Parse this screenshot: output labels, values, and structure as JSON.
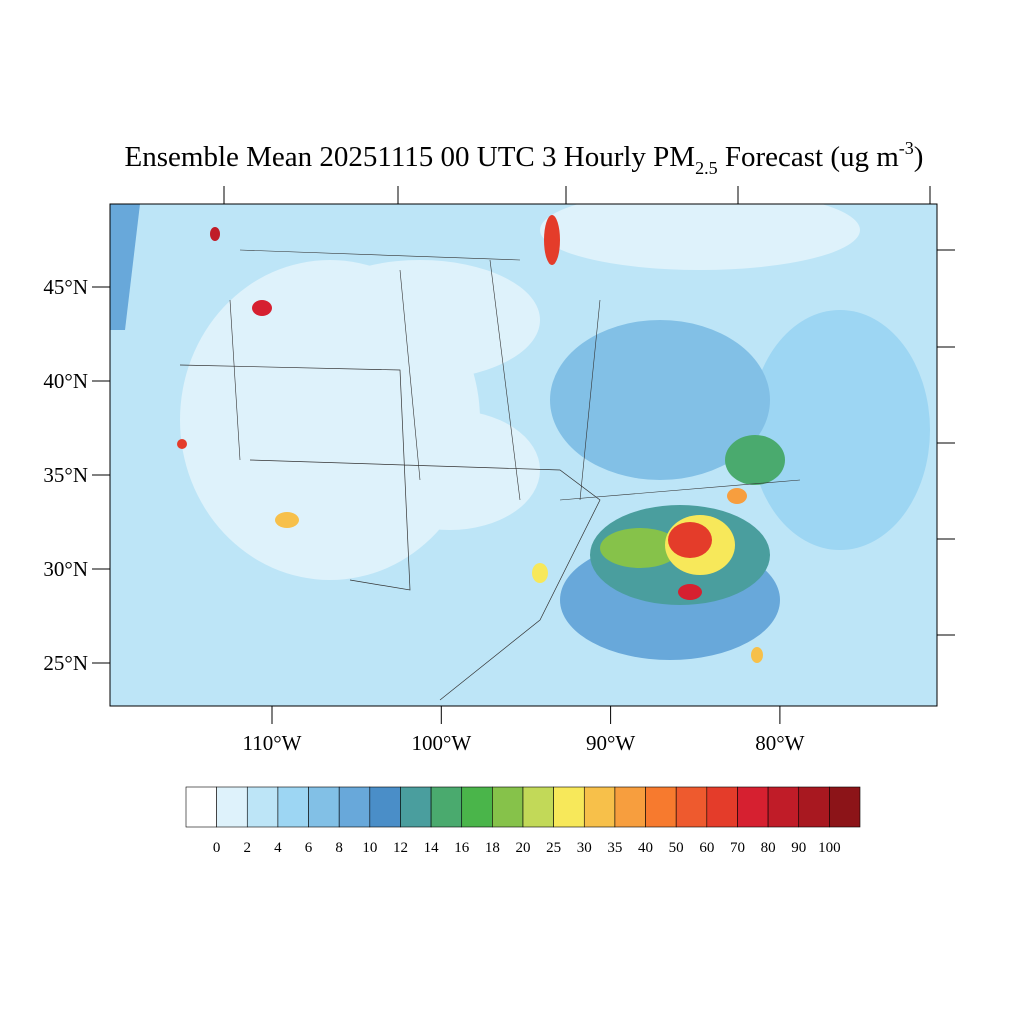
{
  "title": {
    "prefix": "Ensemble Mean 20251115 00 UTC 3 Hourly PM",
    "subscript": "2.5",
    "middle": " Forecast (ug m",
    "superscript": "-3",
    "suffix": ")"
  },
  "latitude_labels": [
    {
      "value": 45,
      "label": "45°N"
    },
    {
      "value": 40,
      "label": "40°N"
    },
    {
      "value": 35,
      "label": "35°N"
    },
    {
      "value": 30,
      "label": "30°N"
    },
    {
      "value": 25,
      "label": "25°N"
    }
  ],
  "longitude_labels": [
    {
      "value": -110,
      "label": "110°W"
    },
    {
      "value": -100,
      "label": "100°W"
    },
    {
      "value": -90,
      "label": "90°W"
    },
    {
      "value": -80,
      "label": "80°W"
    }
  ],
  "colorbar": {
    "levels": [
      0,
      2,
      4,
      6,
      8,
      10,
      12,
      14,
      16,
      18,
      20,
      25,
      30,
      35,
      40,
      50,
      60,
      70,
      80,
      90,
      100
    ],
    "colors": [
      "#ffffff",
      "#def2fb",
      "#bde5f7",
      "#9dd6f3",
      "#82c0e6",
      "#68a8da",
      "#4a8ec8",
      "#4a9e9e",
      "#4aaa6e",
      "#4ab54a",
      "#86c24a",
      "#c2d958",
      "#f7e85a",
      "#f7c04a",
      "#f79e3e",
      "#f77a2e",
      "#ee5a2e",
      "#e43c2a",
      "#d62030",
      "#c01c28",
      "#a81820",
      "#8c1418"
    ]
  }
}
